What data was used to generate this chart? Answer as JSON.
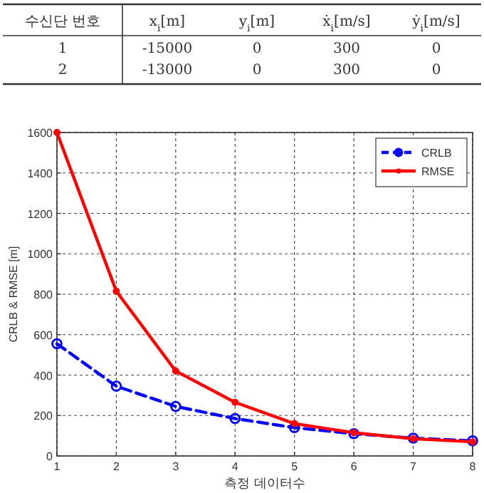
{
  "chart_data": [
    {
      "type": "other",
      "categories": [
        "수신단 번호",
        "x$_{i}$[m]",
        "y$_{i}$[m]",
        "ẋ$_{i}$[m/s]",
        "ẏ$_{i}$[m/s]"
      ],
      "annotations": [
        "1",
        "-15000",
        "0",
        "300",
        "0",
        "2",
        "-13000",
        "0",
        "300",
        "0"
      ]
    },
    {
      "type": "line",
      "xlabel": "측정 데이터수",
      "ylabel": "CRLB & RMSE [m]",
      "x": [
        1,
        2,
        3,
        4,
        5,
        6,
        7,
        8
      ],
      "series": [
        {
          "name": "CRLB",
          "color": "#0000ff",
          "marker": "circle",
          "line_style": "dashed",
          "values": [
            555,
            345,
            245,
            185,
            140,
            110,
            88,
            75
          ]
        },
        {
          "name": "RMSE",
          "color": "#ff0000",
          "marker": "circle",
          "line_style": "solid",
          "values": [
            1600,
            815,
            420,
            265,
            160,
            115,
            85,
            70
          ]
        }
      ],
      "xlim": [
        1,
        8
      ],
      "xticks": [
        1,
        2,
        3,
        4,
        5,
        6,
        7,
        8
      ],
      "ylim": [
        0,
        1600
      ],
      "yticks": [
        0,
        200,
        400,
        600,
        800,
        1000,
        1200,
        1400,
        1600
      ],
      "grid": true,
      "legend": "top right"
    }
  ]
}
